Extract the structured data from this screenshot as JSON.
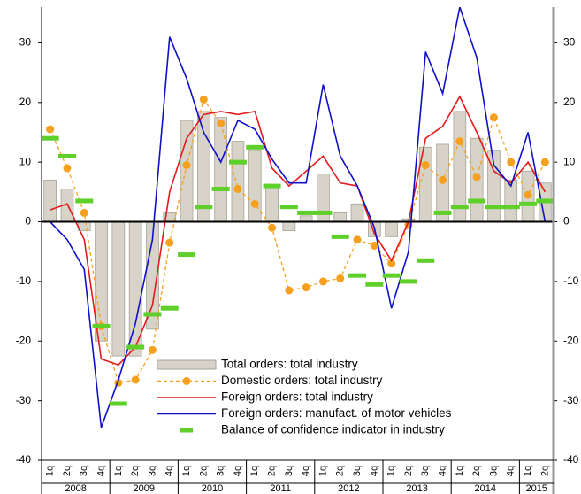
{
  "chart_data": {
    "type": "combo",
    "categories": [
      "1q",
      "2q",
      "3q",
      "4q",
      "1q",
      "2q",
      "3q",
      "4q",
      "1q",
      "2q",
      "3q",
      "4q",
      "1q",
      "2q",
      "3q",
      "4q",
      "1q",
      "2q",
      "3q",
      "4q",
      "1q",
      "2q",
      "3q",
      "4q",
      "1q",
      "2q",
      "3q",
      "4q",
      "1q",
      "2q"
    ],
    "years": [
      "2008",
      "2009",
      "2010",
      "2011",
      "2012",
      "2013",
      "2014",
      "2015"
    ],
    "ylim": [
      -40,
      36
    ],
    "yticks": [
      -40,
      -30,
      -20,
      -10,
      0,
      10,
      20,
      30
    ],
    "y2lim": [
      -40,
      36
    ],
    "y2ticks": [
      -40,
      -30,
      -20,
      -10,
      0,
      10,
      20,
      30
    ],
    "legend": "bottom-center",
    "series": [
      {
        "name": "Total orders: total industry",
        "type": "bar",
        "color": "#d8d3c8",
        "values": [
          7,
          5.5,
          -1.5,
          -20,
          -22.5,
          -22.5,
          -18,
          1.5,
          17,
          18.5,
          17.5,
          13.5,
          12,
          6,
          -1.5,
          1,
          8,
          1.5,
          3,
          -2.5,
          -2.5,
          0.5,
          12.5,
          13,
          18.5,
          14,
          12,
          7,
          8.5,
          6.5
        ]
      },
      {
        "name": "Domestic orders: total industry",
        "type": "dashed-dots",
        "color": "#f5a01e",
        "values": [
          15.5,
          9,
          1.5,
          -17.5,
          -27,
          -26.5,
          -21.5,
          -3.5,
          9.5,
          20.5,
          16.5,
          5.5,
          3,
          -1,
          -11.5,
          -11,
          -10,
          -9.5,
          -3,
          -4,
          -7,
          -0.5,
          9.5,
          7,
          13.5,
          7.5,
          17.5,
          10,
          4.5,
          10
        ]
      },
      {
        "name": "Foreign orders: total industry",
        "type": "line",
        "color": "#e41a1c",
        "values": [
          2,
          3,
          -3,
          -23,
          -24,
          -21,
          -14,
          5,
          14,
          18,
          18.5,
          18,
          18.5,
          9,
          6,
          8.5,
          11,
          6.5,
          6,
          -2,
          -6.5,
          0,
          14,
          16,
          21,
          15,
          8.5,
          6.5,
          10,
          5
        ]
      },
      {
        "name": "Foreign orders:  manufact. of motor vehicles",
        "type": "line",
        "color": "#1010c8",
        "values": [
          0,
          -3,
          -8,
          -34.5,
          -26.5,
          -17,
          -3,
          31,
          24,
          15,
          10,
          17,
          15.5,
          10.5,
          6.5,
          6.5,
          23,
          11,
          6,
          -1,
          -14.5,
          -5,
          28.5,
          21.5,
          36,
          27.5,
          9.5,
          6,
          15,
          0
        ]
      },
      {
        "name": "Balance of confidence indicator in industry",
        "type": "dash-markers",
        "color": "#5fd02a",
        "values": [
          14,
          11,
          3.5,
          -17.5,
          -30.5,
          -21,
          -15.5,
          -14.5,
          -5.5,
          2.5,
          5.5,
          10,
          12.5,
          6,
          2.5,
          1.5,
          1.5,
          -2.5,
          -9,
          -10.5,
          -9,
          -10,
          -6.5,
          1.5,
          2.5,
          3.5,
          2.5,
          2.5,
          3,
          3.5
        ]
      }
    ]
  }
}
